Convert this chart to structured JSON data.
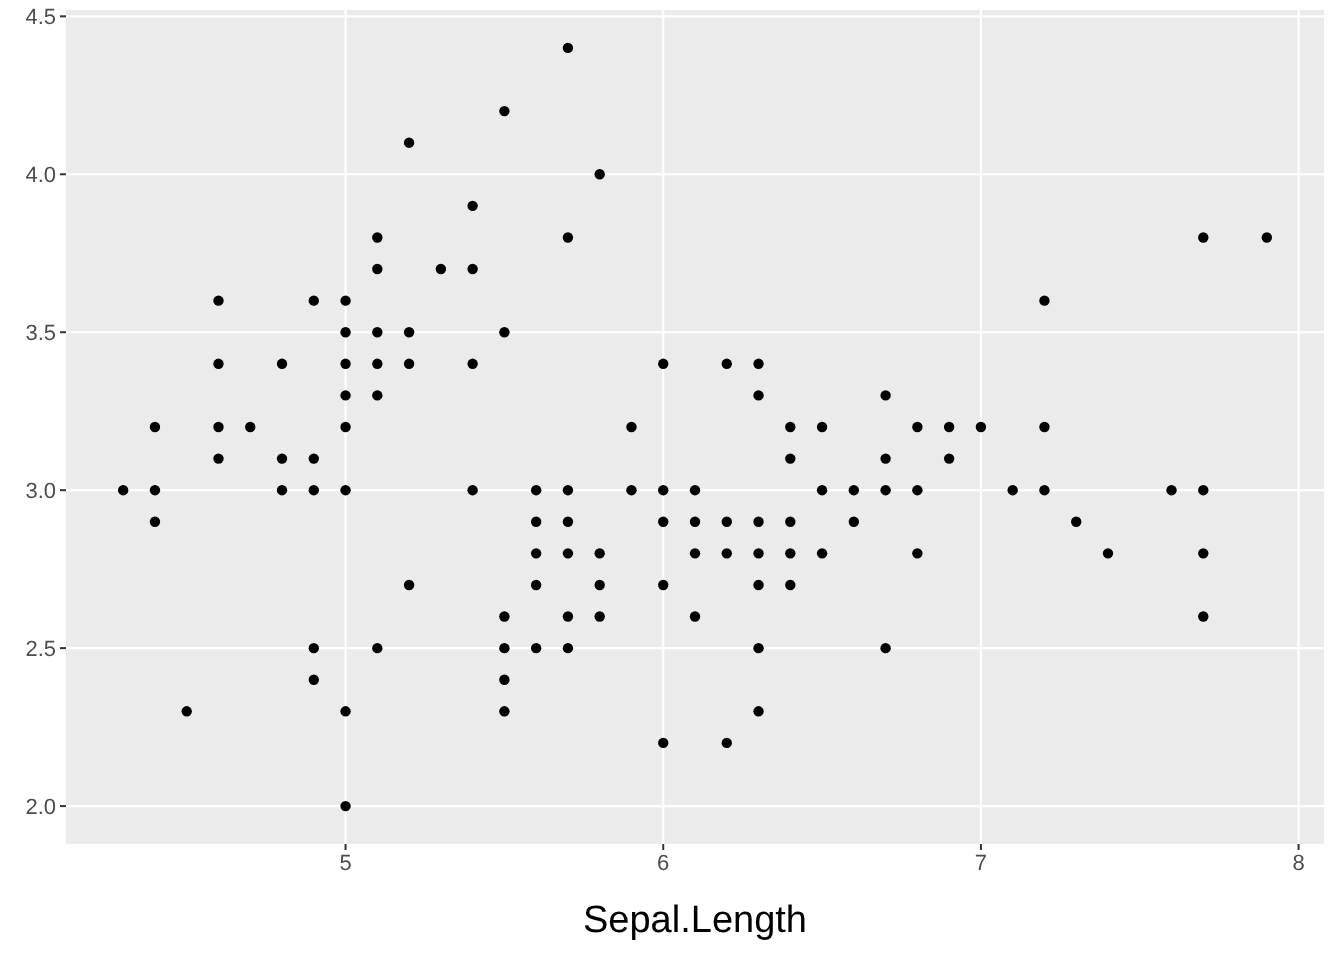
{
  "chart_data": {
    "type": "scatter",
    "xlabel": "Sepal.Length",
    "x": [
      4.3,
      4.4,
      4.4,
      4.4,
      4.5,
      4.6,
      4.6,
      4.6,
      4.6,
      4.7,
      4.8,
      4.8,
      4.8,
      4.9,
      4.9,
      4.9,
      4.9,
      4.9,
      5.0,
      5.0,
      5.0,
      5.0,
      5.0,
      5.0,
      5.0,
      5.0,
      5.1,
      5.1,
      5.1,
      5.1,
      5.1,
      5.1,
      5.2,
      5.2,
      5.2,
      5.2,
      5.3,
      5.4,
      5.4,
      5.4,
      5.4,
      5.5,
      5.5,
      5.5,
      5.5,
      5.5,
      5.5,
      5.6,
      5.6,
      5.6,
      5.6,
      5.6,
      5.7,
      5.7,
      5.7,
      5.7,
      5.7,
      5.7,
      5.7,
      5.8,
      5.8,
      5.8,
      5.8,
      5.9,
      5.9,
      6.0,
      6.0,
      6.0,
      6.0,
      6.0,
      6.1,
      6.1,
      6.1,
      6.1,
      6.2,
      6.2,
      6.2,
      6.2,
      6.3,
      6.3,
      6.3,
      6.3,
      6.3,
      6.3,
      6.3,
      6.4,
      6.4,
      6.4,
      6.4,
      6.4,
      6.5,
      6.5,
      6.5,
      6.6,
      6.6,
      6.7,
      6.7,
      6.7,
      6.7,
      6.8,
      6.8,
      6.8,
      6.9,
      6.9,
      7.0,
      7.1,
      7.2,
      7.2,
      7.2,
      7.3,
      7.4,
      7.6,
      7.7,
      7.7,
      7.7,
      7.7,
      7.9
    ],
    "series": [
      {
        "color": "#000000",
        "values": [
          3.0,
          2.9,
          3.0,
          3.2,
          2.3,
          3.1,
          3.4,
          3.6,
          3.2,
          3.2,
          3.4,
          3.0,
          3.1,
          3.0,
          3.1,
          3.6,
          2.4,
          2.5,
          3.6,
          3.4,
          3.0,
          3.2,
          3.5,
          3.3,
          2.0,
          2.3,
          3.5,
          3.8,
          3.7,
          3.3,
          3.4,
          2.5,
          3.5,
          3.4,
          4.1,
          2.7,
          3.7,
          3.9,
          3.7,
          3.4,
          3.0,
          4.2,
          3.5,
          2.3,
          2.4,
          2.5,
          2.6,
          2.9,
          3.0,
          2.5,
          2.7,
          2.8,
          4.4,
          3.8,
          2.8,
          2.6,
          3.0,
          2.9,
          2.5,
          4.0,
          2.7,
          2.6,
          2.8,
          3.0,
          3.2,
          2.2,
          2.9,
          2.7,
          3.4,
          3.0,
          2.9,
          2.8,
          3.0,
          2.6,
          2.2,
          2.9,
          2.8,
          3.4,
          3.3,
          2.5,
          2.3,
          2.9,
          2.7,
          2.8,
          3.4,
          3.2,
          2.9,
          2.7,
          2.8,
          3.1,
          2.8,
          3.0,
          3.2,
          2.9,
          3.0,
          3.1,
          3.0,
          2.5,
          3.3,
          2.8,
          3.0,
          3.2,
          3.1,
          3.2,
          3.2,
          3.0,
          3.6,
          3.2,
          3.0,
          2.9,
          2.8,
          3.0,
          3.8,
          2.6,
          2.8,
          3.0,
          3.8
        ]
      }
    ],
    "xlim": [
      4.12,
      8.08
    ],
    "xticks": [
      5,
      6,
      7,
      8
    ],
    "ylim": [
      1.88,
      4.52
    ],
    "yticks": [
      {
        "value": 2,
        "label": "2.0"
      },
      {
        "value": 2.5,
        "label": "2.5"
      },
      {
        "value": 3,
        "label": "3.0"
      },
      {
        "value": 3.5,
        "label": "3.5"
      },
      {
        "value": 4,
        "label": "4.0"
      },
      {
        "value": 4.5,
        "label": "4.5"
      }
    ],
    "grid": true,
    "marker": "circle"
  }
}
